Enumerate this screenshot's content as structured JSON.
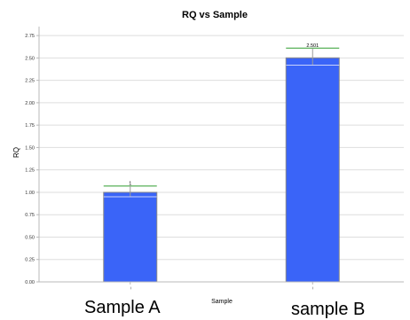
{
  "chart_data": {
    "type": "bar",
    "title": "RQ vs Sample",
    "xlabel": "Sample",
    "ylabel": "RQ",
    "categories": [
      "−",
      "−"
    ],
    "values": [
      1,
      2.501
    ],
    "value_labels": [
      "1",
      "2.501"
    ],
    "error_bars": [
      {
        "low": 0.95,
        "high": 1.07
      },
      {
        "low": 2.42,
        "high": 2.61
      }
    ],
    "ylim": [
      0,
      2.85
    ],
    "y_ticks": [
      0,
      0.25,
      0.5,
      0.75,
      1.0,
      1.25,
      1.5,
      1.75,
      2.0,
      2.25,
      2.5,
      2.75
    ],
    "y_tick_labels": [
      "0.00",
      "0.25",
      "0.50",
      "0.75",
      "1.00",
      "1.25",
      "1.50",
      "1.75",
      "2.00",
      "2.25",
      "2.50",
      "2.75"
    ],
    "grid": true,
    "colors": {
      "bar": "#3a64f8",
      "bar_edge": "#8a8a8a",
      "error_high": "#2e9e2e",
      "error_low": "#c8d2fc",
      "grid": "#dedede",
      "axis": "#b8b8b8"
    }
  },
  "annotations": {
    "sample_a": "Sample A",
    "sample_b": "sample B"
  }
}
